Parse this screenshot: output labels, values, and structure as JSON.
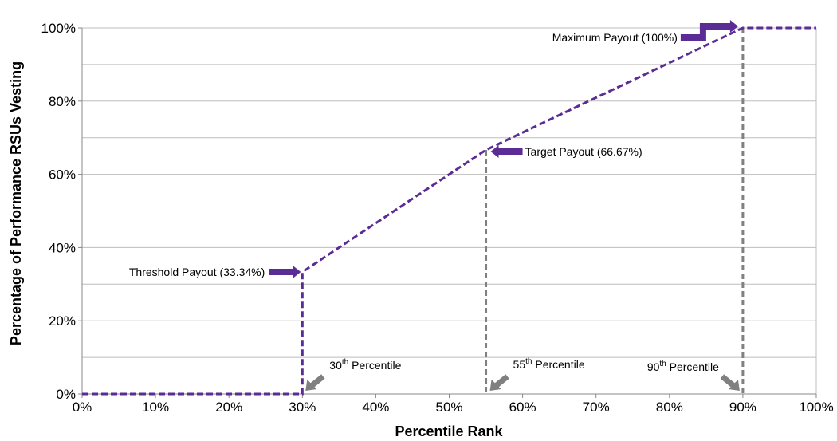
{
  "chart_data": {
    "type": "line",
    "title": "",
    "xlabel": "Percentile Rank",
    "ylabel": "Percentage of Performance RSUs Vesting",
    "xlim": [
      0,
      100
    ],
    "ylim": [
      0,
      100
    ],
    "x_ticks": [
      "0%",
      "10%",
      "20%",
      "30%",
      "40%",
      "50%",
      "60%",
      "70%",
      "80%",
      "90%",
      "100%"
    ],
    "y_ticks": [
      "0%",
      "20%",
      "40%",
      "60%",
      "80%",
      "100%"
    ],
    "grid": true,
    "line_color": "#5b2c96",
    "series": [
      {
        "x": [
          0,
          30,
          30,
          55,
          90,
          100
        ],
        "y": [
          0,
          0,
          33.34,
          66.67,
          100,
          100
        ]
      }
    ],
    "reference_lines": [
      {
        "x": 55,
        "y_top": 66.67
      },
      {
        "x": 90,
        "y_top": 100
      }
    ],
    "payout_annotations": [
      {
        "label": "Threshold Payout (33.34%)",
        "x": 30,
        "y": 33.34,
        "arrow_color": "#5b2c96"
      },
      {
        "label": "Target Payout (66.67%)",
        "x": 55,
        "y": 66.67,
        "arrow_color": "#5b2c96"
      },
      {
        "label": "Maximum Payout (100%)",
        "x": 90,
        "y": 100,
        "arrow_color": "#5b2c96"
      }
    ],
    "percentile_annotations": [
      {
        "num": "30",
        "sup": "th",
        "rest": " Percentile",
        "x": 30
      },
      {
        "num": "55",
        "sup": "th",
        "rest": " Percentile",
        "x": 55
      },
      {
        "num": "90",
        "sup": "th",
        "rest": " Percentile",
        "x": 90
      }
    ],
    "percentile_arrow_color": "#808080",
    "reference_line_color": "#808080"
  }
}
